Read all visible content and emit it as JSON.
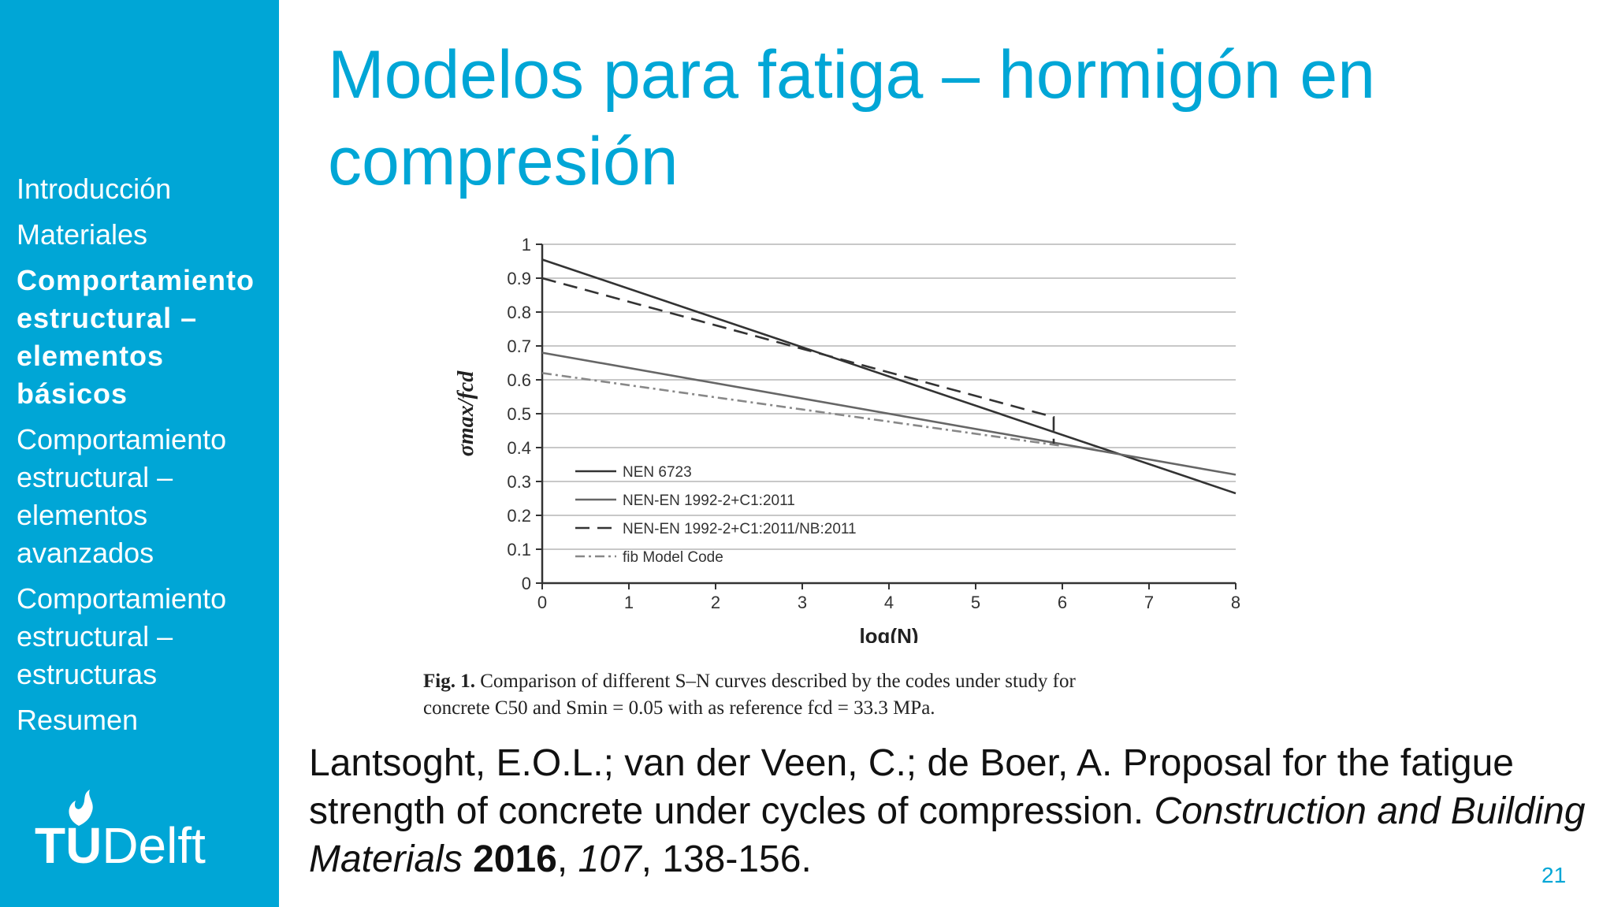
{
  "sidebar": {
    "items": [
      {
        "label": "Introducción",
        "active": false
      },
      {
        "label": "Materiales",
        "active": false
      },
      {
        "label": "Comportamiento estructural – elementos básicos",
        "active": true
      },
      {
        "label": "Comportamiento estructural – elementos avanzados",
        "active": false
      },
      {
        "label": "Comportamiento estructural – estructuras",
        "active": false
      },
      {
        "label": "Resumen",
        "active": false
      }
    ],
    "logo": {
      "tu": "TU",
      "delft": "Delft",
      "icon": "flame-icon"
    }
  },
  "title": "Modelos para fatiga – hormigón en compresión",
  "chart_data": {
    "type": "line",
    "xlabel": "log(N)",
    "ylabel": "σmax/fcd",
    "xlim": [
      0,
      8
    ],
    "ylim": [
      0,
      1
    ],
    "xticks": [
      "0",
      "1",
      "2",
      "3",
      "4",
      "5",
      "6",
      "7",
      "8"
    ],
    "yticks": [
      "0",
      "0.1",
      "0.2",
      "0.3",
      "0.4",
      "0.5",
      "0.6",
      "0.7",
      "0.8",
      "0.9",
      "1"
    ],
    "grid": "horizontal",
    "legend_position": "lower-left",
    "series": [
      {
        "name": "NEN 6723",
        "style": "solid",
        "color": "#333333",
        "x": [
          0,
          8
        ],
        "y": [
          0.955,
          0.265
        ]
      },
      {
        "name": "NEN-EN 1992-2+C1:2011",
        "style": "solid",
        "color": "#666666",
        "x": [
          0,
          8
        ],
        "y": [
          0.68,
          0.32
        ]
      },
      {
        "name": "NEN-EN 1992-2+C1:2011/NB:2011",
        "style": "dashed",
        "color": "#333333",
        "x": [
          0,
          5.9,
          5.9
        ],
        "y": [
          0.9,
          0.49,
          0.41
        ]
      },
      {
        "name": "fib Model Code",
        "style": "dashdot",
        "color": "#888888",
        "x": [
          0,
          6.0
        ],
        "y": [
          0.62,
          0.405
        ]
      }
    ]
  },
  "caption": {
    "label": "Fig. 1.",
    "line1": "Comparison of different S–N curves described by the codes under study for",
    "line2": "concrete C50 and Smin = 0.05 with as reference fcd = 33.3 MPa."
  },
  "reference": {
    "authors": "Lantsoght, E.O.L.; van der Veen, C.; de Boer, A. Proposal for the fatigue strength of concrete under cycles of compression. ",
    "journal": "Construction and Building Materials",
    "sep1": " ",
    "year": "2016",
    "sep2": ", ",
    "volume": "107",
    "pages": ", 138-156."
  },
  "page_number": "21"
}
